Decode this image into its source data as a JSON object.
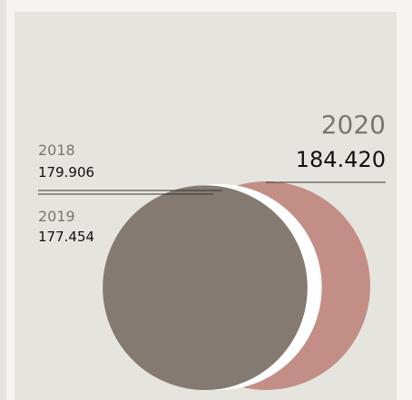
{
  "chart_data": {
    "type": "circle",
    "categories": [
      "2018",
      "2019",
      "2020"
    ],
    "values": [
      179906,
      177454,
      184420
    ],
    "value_labels": [
      "179.906",
      "177.454",
      "184.420"
    ],
    "colors": [
      "#ffffff",
      "#857a72",
      "#c38e86"
    ]
  }
}
